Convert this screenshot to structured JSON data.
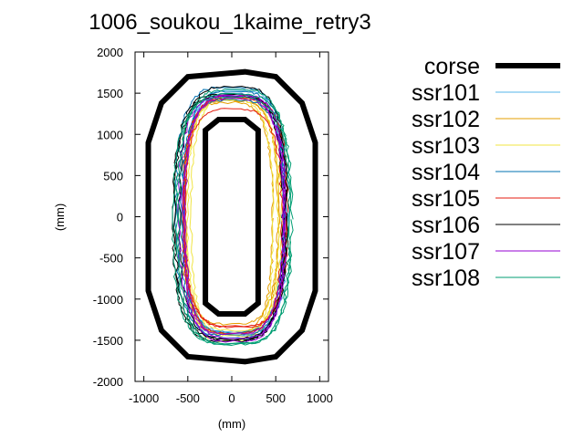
{
  "chart_data": {
    "type": "line",
    "title": "1006_soukou_1kaime_retry3",
    "xlabel": "(mm)",
    "ylabel": "(mm)",
    "xlim": [
      -1100,
      1100
    ],
    "ylim": [
      -2000,
      2000
    ],
    "xticks": [
      -1000,
      -500,
      0,
      500,
      1000
    ],
    "yticks": [
      -2000,
      -1500,
      -1000,
      -500,
      0,
      500,
      1000,
      1500,
      2000
    ],
    "xtick_labels": [
      "-1000",
      "-500",
      "0",
      "500",
      "1000"
    ],
    "ytick_labels": [
      "-2000",
      "-1500",
      "-1000",
      "-500",
      "0",
      "500",
      "1000",
      "1500",
      "2000"
    ],
    "grid": false,
    "legend_position": "right",
    "course": {
      "name": "corse",
      "color": "#000000",
      "outer": [
        [
          -500,
          1700
        ],
        [
          150,
          1760
        ],
        [
          500,
          1700
        ],
        [
          800,
          1380
        ],
        [
          950,
          900
        ],
        [
          950,
          -900
        ],
        [
          800,
          -1380
        ],
        [
          500,
          -1700
        ],
        [
          150,
          -1760
        ],
        [
          -500,
          -1700
        ],
        [
          -800,
          -1380
        ],
        [
          -950,
          -900
        ],
        [
          -950,
          900
        ],
        [
          -800,
          1380
        ]
      ],
      "inner": [
        [
          -300,
          1050
        ],
        [
          -150,
          1180
        ],
        [
          150,
          1180
        ],
        [
          300,
          1050
        ],
        [
          300,
          -1050
        ],
        [
          150,
          -1180
        ],
        [
          -150,
          -1180
        ],
        [
          -300,
          -1050
        ]
      ]
    },
    "series": [
      {
        "name": "ssr101",
        "color": "#55b4e9",
        "rx": 570,
        "ry": 1450,
        "cx": 30,
        "cy": 60
      },
      {
        "name": "ssr102",
        "color": "#e69f00",
        "rx": 540,
        "ry": 1380,
        "cx": -40,
        "cy": 10
      },
      {
        "name": "ssr103",
        "color": "#f0e442",
        "rx": 520,
        "ry": 1420,
        "cx": 0,
        "cy": -30
      },
      {
        "name": "ssr104",
        "color": "#0072b2",
        "rx": 600,
        "ry": 1480,
        "cx": 10,
        "cy": 20
      },
      {
        "name": "ssr105",
        "color": "#e51e10",
        "rx": 560,
        "ry": 1400,
        "cx": 50,
        "cy": 0
      },
      {
        "name": "ssr106",
        "color": "#000000",
        "rx": 620,
        "ry": 1500,
        "cx": -20,
        "cy": 40
      },
      {
        "name": "ssr107",
        "color": "#9400d3",
        "rx": 580,
        "ry": 1430,
        "cx": 20,
        "cy": -20
      },
      {
        "name": "ssr108",
        "color": "#009e73",
        "rx": 650,
        "ry": 1530,
        "cx": -10,
        "cy": 0
      }
    ]
  }
}
